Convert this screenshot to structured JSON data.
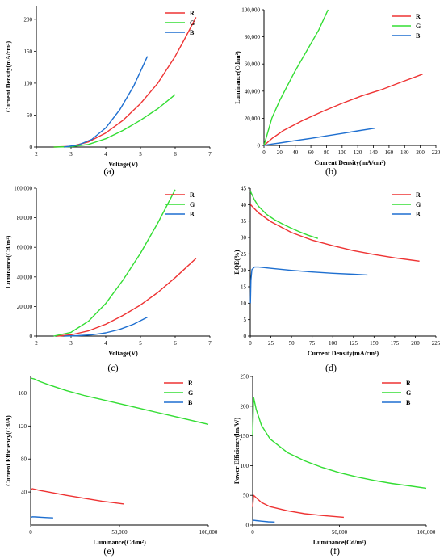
{
  "chart_data": [
    {
      "panel": "(a)",
      "type": "line",
      "xlabel": "Voltage(V)",
      "ylabel": "Current Density(mA/cm²)",
      "xlim": [
        2,
        7
      ],
      "ylim": [
        0,
        220
      ],
      "xticks": [
        "2",
        "3",
        "4",
        "5",
        "6",
        "7"
      ],
      "yticks": [
        "0",
        "50",
        "100",
        "150",
        "200"
      ],
      "legend": "top-right",
      "series": [
        {
          "name": "R",
          "color": "#ee3333",
          "x": [
            2.5,
            3.0,
            3.5,
            4.0,
            4.5,
            5.0,
            5.5,
            6.0,
            6.3,
            6.6
          ],
          "y": [
            0,
            1,
            8,
            22,
            42,
            68,
            100,
            142,
            172,
            203
          ]
        },
        {
          "name": "G",
          "color": "#33dd33",
          "x": [
            2.5,
            3.0,
            3.5,
            4.0,
            4.5,
            5.0,
            5.5,
            6.0
          ],
          "y": [
            0,
            0.5,
            4,
            13,
            26,
            42,
            60,
            82
          ]
        },
        {
          "name": "B",
          "color": "#1e6fd0",
          "x": [
            2.8,
            3.2,
            3.6,
            4.0,
            4.4,
            4.8,
            5.2
          ],
          "y": [
            0,
            3,
            12,
            30,
            58,
            95,
            142
          ]
        }
      ]
    },
    {
      "panel": "(b)",
      "type": "line",
      "xlabel": "Current Density(mA/cm²)",
      "ylabel": "Luminance(Cd/m²)",
      "xlim": [
        0,
        220
      ],
      "ylim": [
        0,
        100000
      ],
      "xticks": [
        "0",
        "20",
        "40",
        "60",
        "80",
        "100",
        "120",
        "140",
        "160",
        "180",
        "200",
        "220"
      ],
      "yticks": [
        "0",
        "20,000",
        "40,000",
        "60,000",
        "80,000",
        "100,000"
      ],
      "legend": "top-right",
      "series": [
        {
          "name": "R",
          "color": "#ee3333",
          "x": [
            0,
            10,
            25,
            50,
            75,
            100,
            125,
            150,
            175,
            203
          ],
          "y": [
            0,
            5000,
            11000,
            18500,
            25000,
            31000,
            36500,
            41000,
            46500,
            52500
          ]
        },
        {
          "name": "G",
          "color": "#33dd33",
          "x": [
            0,
            10,
            20,
            30,
            40,
            50,
            60,
            70,
            82
          ],
          "y": [
            0,
            20000,
            33000,
            44000,
            55000,
            65000,
            75000,
            85000,
            100000
          ]
        },
        {
          "name": "B",
          "color": "#1e6fd0",
          "x": [
            0,
            10,
            20,
            40,
            60,
            80,
            100,
            120,
            142
          ],
          "y": [
            0,
            1000,
            1800,
            3500,
            5200,
            7000,
            8800,
            10700,
            12700
          ]
        }
      ]
    },
    {
      "panel": "(c)",
      "type": "line",
      "xlabel": "Voltage(V)",
      "ylabel": "Luminance(Cd/m²)",
      "xlim": [
        2,
        7
      ],
      "ylim": [
        0,
        100000
      ],
      "xticks": [
        "2",
        "3",
        "4",
        "5",
        "6",
        "7"
      ],
      "yticks": [
        "0",
        "20,000",
        "40,000",
        "60,000",
        "80,000",
        "100,000"
      ],
      "legend": "top-right",
      "series": [
        {
          "name": "R",
          "color": "#ee3333",
          "x": [
            2.6,
            3.0,
            3.5,
            4.0,
            4.5,
            5.0,
            5.5,
            6.0,
            6.3,
            6.6
          ],
          "y": [
            0,
            800,
            3500,
            8000,
            14000,
            21000,
            29500,
            39500,
            46000,
            52500
          ]
        },
        {
          "name": "G",
          "color": "#33dd33",
          "x": [
            2.5,
            3.0,
            3.5,
            4.0,
            4.5,
            5.0,
            5.5,
            6.0
          ],
          "y": [
            0,
            2500,
            10000,
            22000,
            38000,
            56000,
            76500,
            99000
          ]
        },
        {
          "name": "B",
          "color": "#1e6fd0",
          "x": [
            2.8,
            3.2,
            3.6,
            4.0,
            4.4,
            4.8,
            5.2
          ],
          "y": [
            0,
            300,
            900,
            2200,
            4500,
            8000,
            12800
          ]
        }
      ]
    },
    {
      "panel": "(d)",
      "type": "line",
      "xlabel": "Current Density(mA/cm²)",
      "ylabel": "EQE(%)",
      "xlim": [
        0,
        225
      ],
      "ylim": [
        0,
        45
      ],
      "xticks": [
        "0",
        "25",
        "50",
        "75",
        "100",
        "125",
        "150",
        "175",
        "200",
        "225"
      ],
      "yticks": [
        "0",
        "5",
        "10",
        "15",
        "20",
        "25",
        "30",
        "35",
        "40",
        "45"
      ],
      "legend": "top-right",
      "series": [
        {
          "name": "R",
          "color": "#ee3333",
          "x": [
            0.3,
            5,
            10,
            25,
            50,
            75,
            100,
            125,
            150,
            175,
            205
          ],
          "y": [
            40,
            38.8,
            37.5,
            34.8,
            31.5,
            29.2,
            27.5,
            26,
            24.8,
            23.8,
            22.8
          ]
        },
        {
          "name": "G",
          "color": "#33dd33",
          "x": [
            0.3,
            5,
            10,
            20,
            30,
            40,
            50,
            60,
            70,
            82
          ],
          "y": [
            44,
            41.5,
            39.5,
            37,
            35.3,
            34,
            32.8,
            31.7,
            30.7,
            29.7
          ]
        },
        {
          "name": "B",
          "color": "#1e6fd0",
          "x": [
            0.2,
            0.8,
            2,
            5,
            10,
            25,
            50,
            75,
            100,
            125,
            142
          ],
          "y": [
            10,
            17,
            20.2,
            21,
            21,
            20.6,
            20,
            19.5,
            19.1,
            18.8,
            18.6
          ]
        }
      ]
    },
    {
      "panel": "(e)",
      "type": "line",
      "xlabel": "Luminance(Cd/m²)",
      "ylabel": "Current Efficiency(Cd/A)",
      "xlim": [
        0,
        100000
      ],
      "ylim": [
        0,
        180
      ],
      "xticks": [
        "0",
        "50,000",
        "100,000"
      ],
      "yticks": [
        "40",
        "80",
        "120",
        "160"
      ],
      "legend": "top-right",
      "series": [
        {
          "name": "R",
          "color": "#ee3333",
          "x": [
            0,
            1000,
            5000,
            10000,
            20000,
            30000,
            40000,
            52500
          ],
          "y": [
            43,
            44,
            42,
            40,
            36,
            32.5,
            29,
            25.5
          ]
        },
        {
          "name": "G",
          "color": "#33dd33",
          "x": [
            0,
            2000,
            5000,
            10000,
            20000,
            30000,
            40000,
            50000,
            60000,
            70000,
            80000,
            90000,
            100000
          ],
          "y": [
            178,
            177,
            174,
            170,
            163,
            157,
            152,
            147,
            142,
            137,
            132,
            127,
            122
          ]
        },
        {
          "name": "B",
          "color": "#1e6fd0",
          "x": [
            0,
            1000,
            3000,
            6000,
            9000,
            12700
          ],
          "y": [
            9,
            10,
            9.8,
            9.4,
            9,
            8.6
          ]
        }
      ]
    },
    {
      "panel": "(f)",
      "type": "line",
      "xlabel": "Luminance(Cd/m²)",
      "ylabel": "Power Efficiency(lm/W)",
      "xlim": [
        0,
        100000
      ],
      "ylim": [
        0,
        250
      ],
      "xticks": [
        "0",
        "50,000",
        "100,000"
      ],
      "yticks": [
        "0",
        "50",
        "100",
        "150",
        "200",
        "250"
      ],
      "legend": "top-right",
      "series": [
        {
          "name": "R",
          "color": "#ee3333",
          "x": [
            0,
            500,
            2000,
            5000,
            10000,
            20000,
            30000,
            40000,
            52500
          ],
          "y": [
            30,
            50,
            46,
            38,
            31,
            24,
            19,
            16,
            13
          ]
        },
        {
          "name": "G",
          "color": "#33dd33",
          "x": [
            0,
            500,
            2000,
            5000,
            10000,
            20000,
            30000,
            40000,
            50000,
            60000,
            70000,
            80000,
            90000,
            100000
          ],
          "y": [
            150,
            215,
            195,
            168,
            145,
            122,
            108,
            97,
            88,
            81,
            75,
            70,
            66,
            62
          ]
        },
        {
          "name": "B",
          "color": "#1e6fd0",
          "x": [
            0,
            500,
            2000,
            5000,
            9000,
            12700
          ],
          "y": [
            6,
            8,
            7.5,
            6.5,
            5.5,
            5
          ]
        }
      ]
    }
  ]
}
